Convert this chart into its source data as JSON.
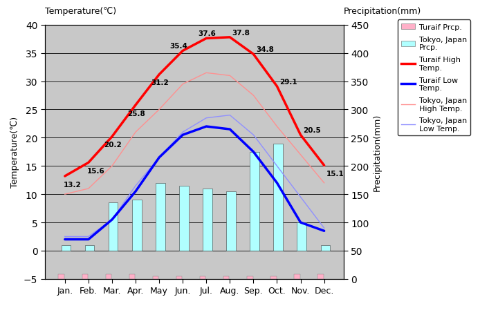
{
  "months": [
    "Jan.",
    "Feb.",
    "Mar.",
    "Apr.",
    "May",
    "Jun.",
    "Jul.",
    "Aug.",
    "Sep.",
    "Oct.",
    "Nov.",
    "Dec."
  ],
  "turaif_high": [
    13.2,
    15.6,
    20.2,
    25.8,
    31.2,
    35.4,
    37.6,
    37.8,
    34.8,
    29.1,
    20.5,
    15.1
  ],
  "turaif_low": [
    2.0,
    2.0,
    5.5,
    10.5,
    16.5,
    20.5,
    22.0,
    21.5,
    17.5,
    12.0,
    5.0,
    3.5
  ],
  "tokyo_high": [
    10.0,
    11.0,
    15.0,
    21.0,
    25.0,
    29.5,
    31.5,
    31.0,
    27.5,
    22.0,
    17.0,
    12.0
  ],
  "tokyo_low": [
    2.5,
    2.5,
    5.5,
    11.5,
    16.5,
    21.0,
    23.5,
    24.0,
    20.5,
    15.0,
    9.5,
    4.0
  ],
  "tokyo_prcp_temp": [
    1.0,
    1.0,
    8.5,
    9.0,
    12.0,
    11.5,
    11.0,
    10.5,
    17.5,
    19.0,
    5.0,
    1.0
  ],
  "turaif_prcp_height": [
    0.8,
    0.8,
    0.8,
    0.8,
    0.5,
    0.5,
    0.5,
    0.5,
    0.5,
    0.5,
    0.8,
    0.8
  ],
  "turaif_prcp_color": "#ffb0c8",
  "tokyo_prcp_color": "#b0ffff",
  "turaif_high_color": "#ff0000",
  "turaif_low_color": "#0000ff",
  "tokyo_high_color": "#ff9090",
  "tokyo_low_color": "#9090ff",
  "bg_color": "#c8c8c8",
  "ylim_left": [
    -5,
    40
  ],
  "ylim_right": [
    0,
    450
  ],
  "yticks_left": [
    -5,
    0,
    5,
    10,
    15,
    20,
    25,
    30,
    35,
    40
  ],
  "yticks_right": [
    0,
    50,
    100,
    150,
    200,
    250,
    300,
    350,
    400,
    450
  ],
  "title_left": "Temperature(℃)",
  "title_right": "Precipitation(mm)",
  "turaif_high_labels": [
    "13.2",
    "15.6",
    "20.2",
    "25.8",
    "31.2",
    "35.4",
    "37.6",
    "37.8",
    "34.8",
    "29.1",
    "20.5",
    "15.1"
  ],
  "label_dx": [
    -0.05,
    -0.05,
    -0.35,
    -0.35,
    -0.35,
    -0.55,
    -0.35,
    0.1,
    0.1,
    0.1,
    0.1,
    0.1
  ],
  "label_dy": [
    -1.8,
    -1.8,
    -1.8,
    -1.8,
    -1.8,
    0.5,
    0.5,
    0.5,
    0.5,
    0.5,
    0.5,
    -1.8
  ]
}
